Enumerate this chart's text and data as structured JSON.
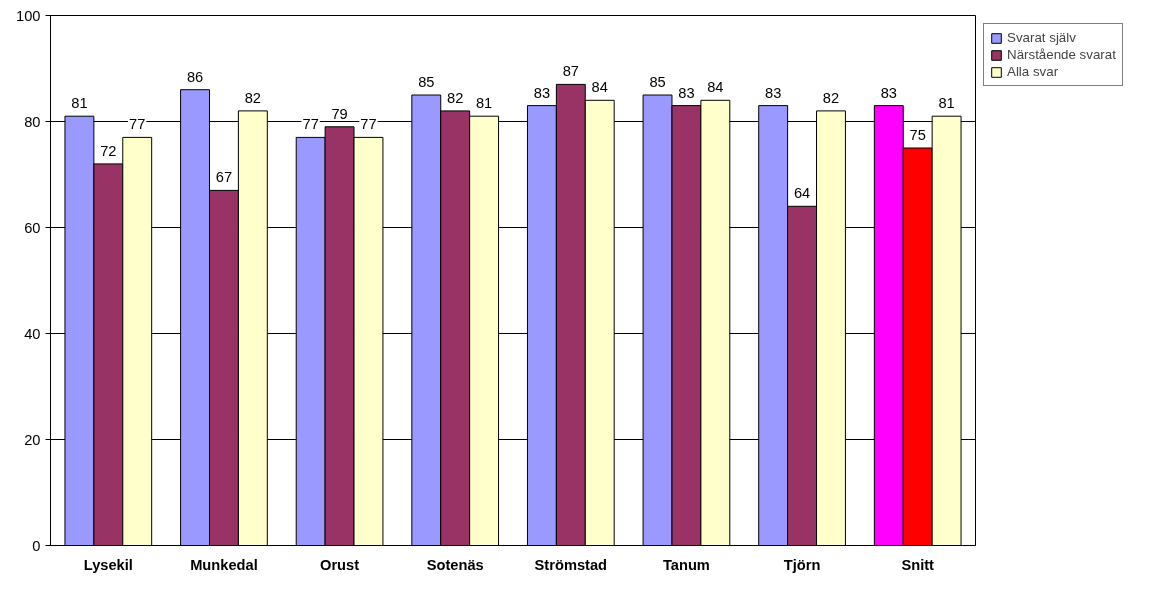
{
  "chart_data": {
    "type": "bar",
    "categories": [
      "Lysekil",
      "Munkedal",
      "Orust",
      "Sotenäs",
      "Strömstad",
      "Tanum",
      "Tjörn",
      "Snitt"
    ],
    "series": [
      {
        "name": "Svarat själv",
        "color": "#9999ff",
        "colors": [
          "#9999ff",
          "#9999ff",
          "#9999ff",
          "#9999ff",
          "#9999ff",
          "#9999ff",
          "#9999ff",
          "#ff00ff"
        ],
        "values": [
          81,
          86,
          77,
          85,
          83,
          85,
          83,
          83
        ]
      },
      {
        "name": "Närstående svarat",
        "color": "#993366",
        "colors": [
          "#993366",
          "#993366",
          "#993366",
          "#993366",
          "#993366",
          "#993366",
          "#993366",
          "#ff0000"
        ],
        "values": [
          72,
          67,
          79,
          82,
          87,
          83,
          64,
          75
        ]
      },
      {
        "name": "Alla svar",
        "color": "#ffffcc",
        "values": [
          77,
          82,
          77,
          81,
          84,
          84,
          82,
          81
        ]
      }
    ],
    "ylim": [
      0,
      100
    ],
    "yticks": [
      0,
      20,
      40,
      60,
      80,
      100
    ],
    "grid": "y",
    "legend": "top right",
    "data_labels": true
  }
}
